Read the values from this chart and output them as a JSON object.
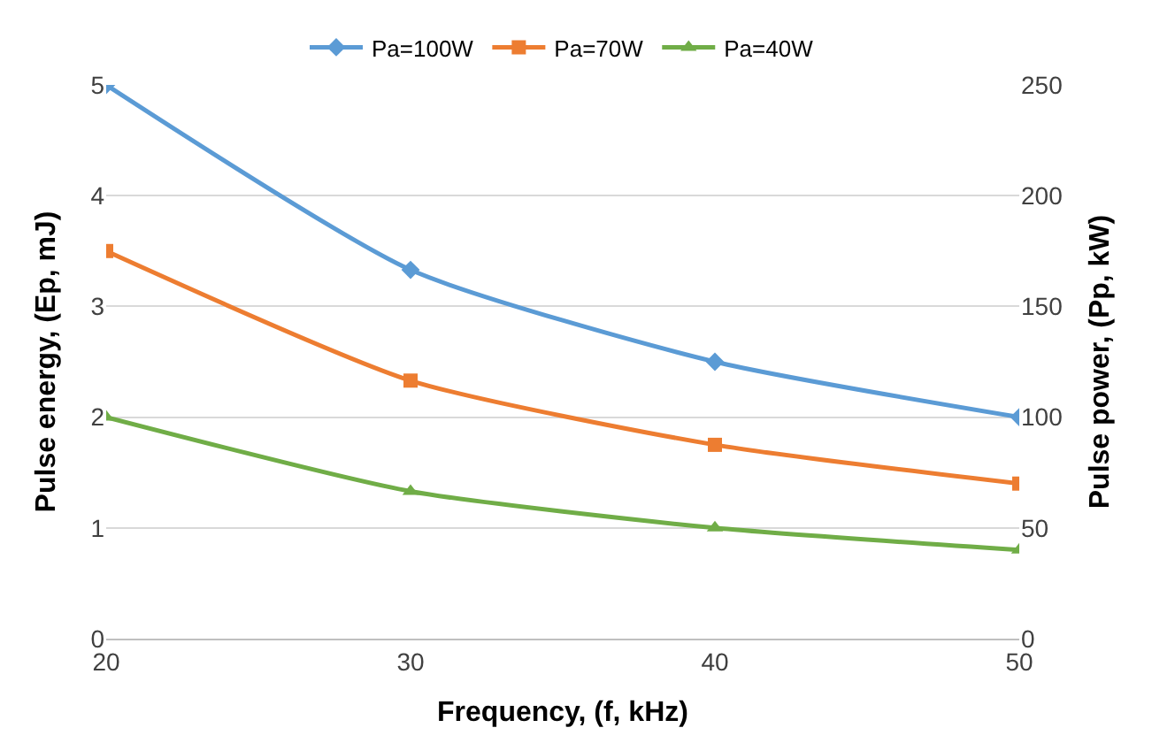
{
  "chart_data": {
    "type": "line",
    "xlabel": "Frequency, (f, kHz)",
    "ylabel": "Pulse energy, (Ep, mJ)",
    "y2label": "Pulse power, (Pp, kW)",
    "x": [
      20,
      30,
      40,
      50
    ],
    "series": [
      {
        "name": "Pa=100W",
        "color": "#5b9bd5",
        "marker": "diamond",
        "values": [
          5,
          3.33,
          2.5,
          2
        ]
      },
      {
        "name": "Pa=70W",
        "color": "#ed7d31",
        "marker": "square",
        "values": [
          3.5,
          2.33,
          1.75,
          1.4
        ]
      },
      {
        "name": "Pa=40W",
        "color": "#70ad47",
        "marker": "triangle",
        "values": [
          2,
          1.33,
          1,
          0.8
        ]
      }
    ],
    "xlim": [
      20,
      50
    ],
    "xticks": [
      20,
      30,
      40,
      50
    ],
    "ylim": [
      0,
      5
    ],
    "yticks": [
      0,
      1,
      2,
      3,
      4,
      5
    ],
    "y2lim": [
      0,
      250
    ],
    "y2ticks": [
      0,
      50,
      100,
      150,
      200,
      250
    ],
    "grid": "y",
    "legend": "top",
    "line_style": "solid"
  }
}
